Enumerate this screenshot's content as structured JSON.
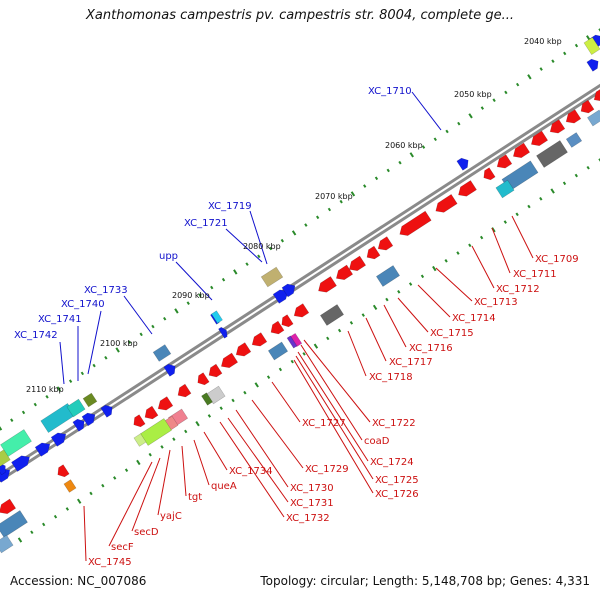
{
  "title": "Xanthomonas campestris pv. campestris str. 8004, complete ge...",
  "footer": {
    "accession": "Accession: NC_007086",
    "summary": "Topology: circular; Length: 5,148,708 bp; Genes: 4,331"
  },
  "colors": {
    "forward_label": "#1010cc",
    "reverse_label": "#cc1010",
    "backbone": "#8a8a8a",
    "tick": "#2a8a2a"
  },
  "kbp_ticks": [
    "2040 kbp",
    "2050 kbp",
    "2060 kbp",
    "2070 kbp",
    "2080 kbp",
    "2090 kbp",
    "2100 kbp",
    "2110 kbp"
  ],
  "forward_gene_labels": [
    "XC_1710",
    "XC_1719",
    "XC_1721",
    "upp",
    "XC_1733",
    "XC_1740",
    "XC_1741",
    "XC_1742"
  ],
  "reverse_gene_labels": [
    "XC_1709",
    "XC_1711",
    "XC_1712",
    "XC_1713",
    "XC_1714",
    "XC_1715",
    "XC_1716",
    "XC_1717",
    "XC_1718",
    "XC_1722",
    "coaD",
    "XC_1724",
    "XC_1725",
    "XC_1726",
    "XC_1727",
    "XC_1729",
    "XC_1730",
    "XC_1731",
    "XC_1732",
    "XC_1734",
    "queA",
    "tgt",
    "yajC",
    "secD",
    "secF",
    "XC_1745"
  ]
}
